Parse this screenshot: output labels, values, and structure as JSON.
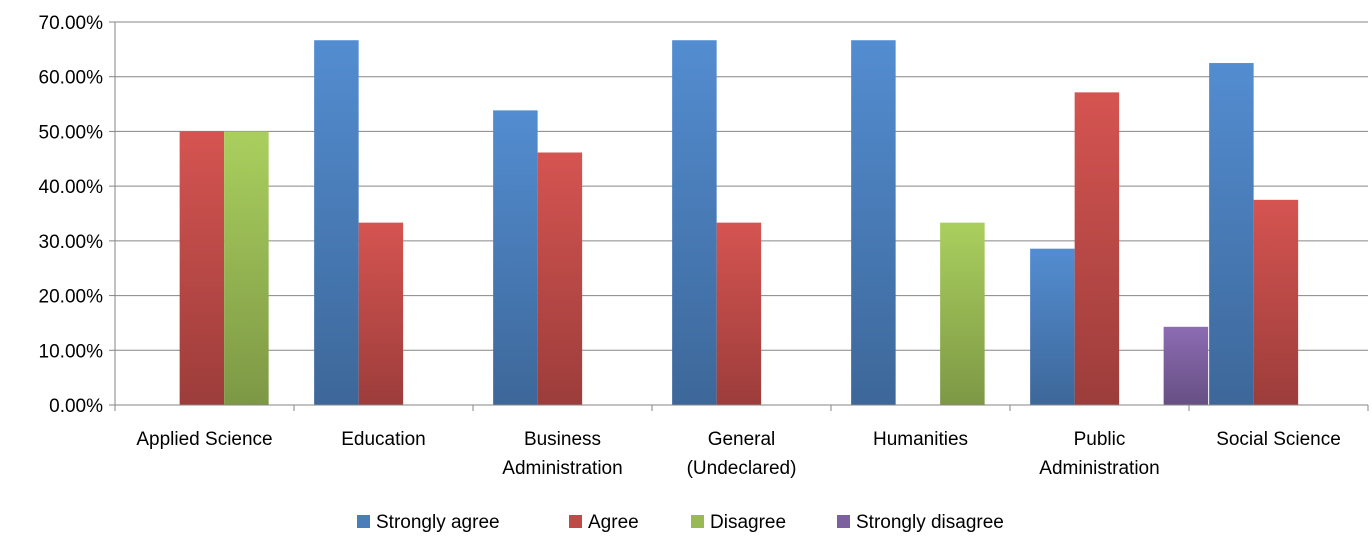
{
  "chart_data": {
    "type": "bar",
    "categories": [
      [
        "Applied Science"
      ],
      [
        "Education"
      ],
      [
        "Business",
        "Administration"
      ],
      [
        "General",
        "(Undeclared)"
      ],
      [
        "Humanities"
      ],
      [
        "Public",
        "Administration"
      ],
      [
        "Social Science"
      ]
    ],
    "series": [
      {
        "name": "Strongly agree",
        "color": "#4a7ebb",
        "values": [
          0,
          66.67,
          53.85,
          66.67,
          66.67,
          28.57,
          62.5
        ]
      },
      {
        "name": "Agree",
        "color": "#be4b48",
        "values": [
          50,
          33.33,
          46.15,
          33.33,
          0,
          57.14,
          37.5
        ]
      },
      {
        "name": "Disagree",
        "color": "#98b954",
        "values": [
          50,
          0,
          0,
          0,
          33.33,
          0,
          0
        ]
      },
      {
        "name": "Strongly disagree",
        "color": "#7d60a0",
        "values": [
          0,
          0,
          0,
          0,
          0,
          14.29,
          0
        ]
      }
    ],
    "y_ticks": [
      "0.00%",
      "10.00%",
      "20.00%",
      "30.00%",
      "40.00%",
      "50.00%",
      "60.00%",
      "70.00%"
    ],
    "ylim": [
      0,
      70
    ],
    "grid": true,
    "legend_position": "bottom"
  }
}
